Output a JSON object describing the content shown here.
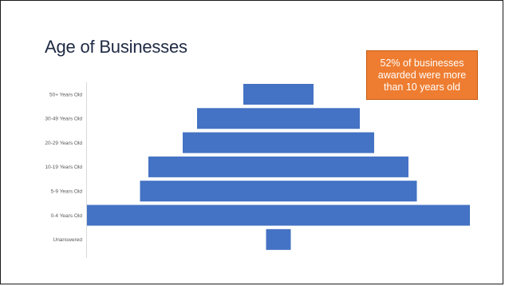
{
  "slide": {
    "title": "Age of Businesses",
    "callout": "52% of businesses awarded were more than 10 years old"
  },
  "colors": {
    "bar": "#4472c4",
    "callout_fill": "#ee7d31",
    "title": "#1f2a44",
    "axis": "#d9d9d9"
  },
  "chart_data": {
    "type": "bar",
    "orientation": "horizontal-centered",
    "categories": [
      "50+ Years Old",
      "30-49 Years Old",
      "20-29 Years Old",
      "10-19 Years Old",
      "5-9 Years Old",
      "0-4 Years Old",
      "Unanswered"
    ],
    "values": [
      88,
      204,
      240,
      326,
      347,
      480,
      31
    ],
    "value_note": "relative bar widths (no value axis printed)",
    "title": "",
    "xlabel": "",
    "ylabel": "",
    "grid": false,
    "legend": "none"
  }
}
